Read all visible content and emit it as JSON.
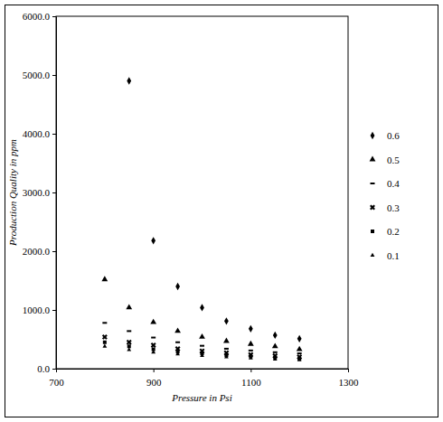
{
  "chart_data": {
    "type": "scatter",
    "x_label": "Pressure in Psi",
    "y_label": "Production Quality in ppm",
    "x": [
      800,
      850,
      900,
      950,
      1000,
      1050,
      1100,
      1150,
      1200
    ],
    "series": [
      {
        "name": "0.6",
        "color": "#000000",
        "marker": "diamond",
        "values": [
          null,
          4900,
          2180,
          1400,
          1040,
          810,
          680,
          570,
          510
        ]
      },
      {
        "name": "0.5",
        "color": "#000000",
        "marker": "triangle",
        "values": [
          1520,
          1040,
          790,
          640,
          540,
          470,
          420,
          380,
          330
        ]
      },
      {
        "name": "0.4",
        "color": "#000000",
        "marker": "dash",
        "values": [
          780,
          640,
          530,
          450,
          390,
          340,
          310,
          280,
          260
        ]
      },
      {
        "name": "0.3",
        "color": "#000000",
        "marker": "x",
        "values": [
          540,
          450,
          400,
          340,
          300,
          270,
          240,
          220,
          200
        ]
      },
      {
        "name": "0.2",
        "color": "#000000",
        "marker": "square",
        "values": [
          450,
          380,
          330,
          290,
          260,
          230,
          210,
          190,
          170
        ]
      },
      {
        "name": "0.1",
        "color": "#000000",
        "marker": "plus",
        "values": [
          380,
          320,
          280,
          250,
          220,
          200,
          180,
          160,
          150
        ]
      }
    ],
    "xlim": [
      700,
      1300
    ],
    "xticks": [
      700,
      900,
      1100,
      1300
    ],
    "ylim": [
      0,
      6000
    ],
    "yticks": [
      {
        "value": 0,
        "label": "0.0"
      },
      {
        "value": 1000,
        "label": "1000.0"
      },
      {
        "value": 2000,
        "label": "2000.0"
      },
      {
        "value": 3000,
        "label": "3000.0"
      },
      {
        "value": 4000,
        "label": "4000.0"
      },
      {
        "value": 5000,
        "label": "5000.0"
      },
      {
        "value": 6000,
        "label": "6000.0"
      }
    ],
    "grid": false,
    "legend": "right"
  }
}
